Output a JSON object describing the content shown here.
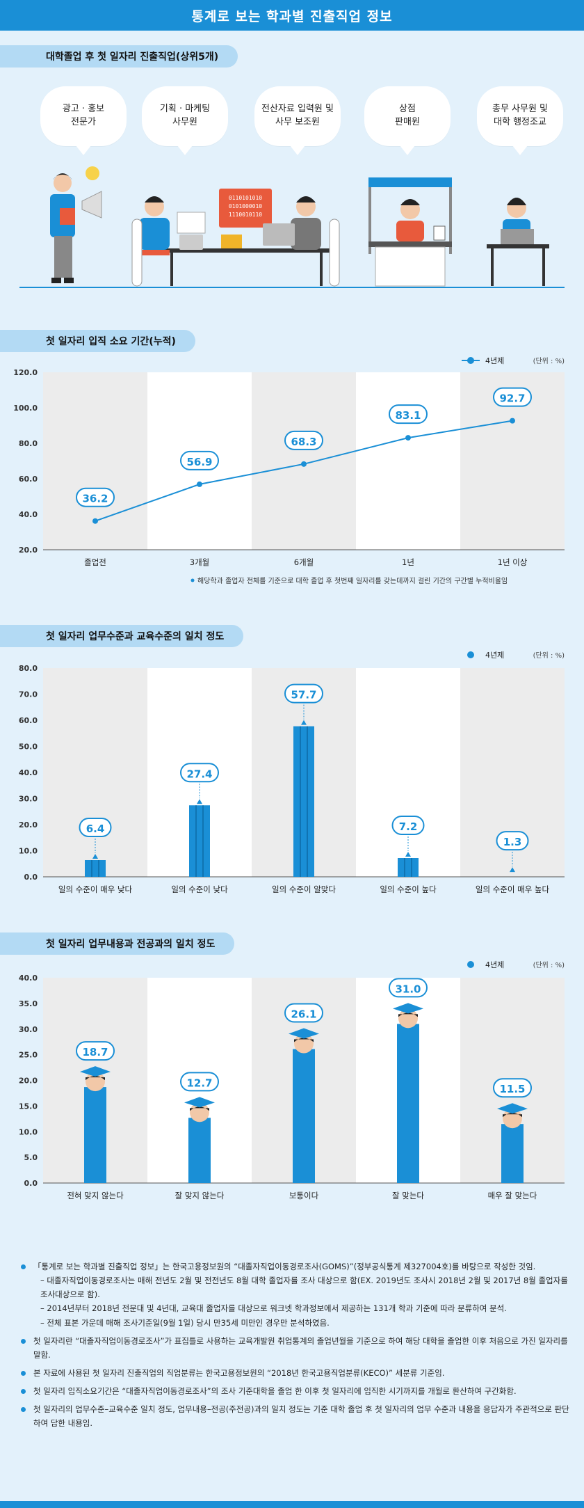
{
  "page_title": "통계로 보는 학과별 진출직업 정보",
  "section1": {
    "title": "대학졸업 후 첫 일자리 진출직업(상위5개)",
    "jobs": [
      "광고 · 홍보\n전문가",
      "기획 · 마케팅\n사무원",
      "전산자료 입력원 및\n사무 보조원",
      "상점\n판매원",
      "총무 사무원 및\n대학 행정조교"
    ],
    "illustration_text": "0110101010\n0101000010\n1110010110"
  },
  "colors": {
    "accent": "#1a8fd6",
    "pill": "#b3daf4",
    "background": "#e3f1fb",
    "grid_dark": "#ececec",
    "grid_light": "#ffffff"
  },
  "chart_data": [
    {
      "type": "line",
      "title": "첫 일자리 입직 소요 기간(누적)",
      "unit": "(단위 : %)",
      "categories": [
        "졸업전",
        "3개월",
        "6개월",
        "1년",
        "1년 이상"
      ],
      "series": [
        {
          "name": "4년제",
          "values": [
            36.2,
            56.9,
            68.3,
            83.1,
            92.7
          ]
        }
      ],
      "y_ticks": [
        "20.0",
        "40.0",
        "60.0",
        "80.0",
        "100.0",
        "120.0"
      ],
      "ylim": [
        20,
        120
      ],
      "footnote": "해당학과 졸업자 전체를 기준으로 대학 졸업 후 첫번째 일자리를 갖는데까지 걸린 기간의 구간별 누적비율임"
    },
    {
      "type": "bar",
      "title": "첫 일자리 업무수준과 교육수준의 일치 정도",
      "unit": "(단위 : %)",
      "categories": [
        "일의 수준이 매우 낮다",
        "일의 수준이 낮다",
        "일의 수준이 알맞다",
        "일의 수준이 높다",
        "일의 수준이 매우 높다"
      ],
      "series": [
        {
          "name": "4년제",
          "values": [
            6.4,
            27.4,
            57.7,
            7.2,
            1.3
          ]
        }
      ],
      "y_ticks": [
        "0.0",
        "10.0",
        "20.0",
        "30.0",
        "40.0",
        "50.0",
        "60.0",
        "70.0",
        "80.0"
      ],
      "ylim": [
        0,
        80
      ]
    },
    {
      "type": "bar",
      "title": "첫 일자리 업무내용과 전공과의 일치 정도",
      "unit": "(단위 : %)",
      "categories": [
        "전혀 맞지 않는다",
        "잘 맞지 않는다",
        "보통이다",
        "잘 맞는다",
        "매우 잘 맞는다"
      ],
      "series": [
        {
          "name": "4년제",
          "values": [
            18.7,
            12.7,
            26.1,
            31.0,
            11.5
          ]
        }
      ],
      "y_ticks": [
        "0.0",
        "5.0",
        "10.0",
        "15.0",
        "20.0",
        "25.0",
        "30.0",
        "35.0",
        "40.0"
      ],
      "ylim": [
        0,
        40
      ]
    }
  ],
  "notes": [
    {
      "text": "「통계로 보는 학과별 진출직업 정보」는 한국고용정보원의 “대졸자직업이동경로조사(GOMS)”(정부공식통계 제327004호)를 바탕으로 작성한 것임.",
      "subs": [
        "– 대졸자직업이동경로조사는 매해 전년도 2월 및 전전년도 8월 대학 졸업자를 조사 대상으로 함(EX. 2019년도 조사시 2018년 2월 및 2017년 8월 졸업자를 조사대상으로 함).",
        "– 2014년부터 2018년 전문대 및 4년대, 교육대 졸업자를 대상으로 워크넷 학과정보에서 제공하는 131개 학과 기준에 따라 분류하여 분석.",
        "– 전체 표본 가운데 매해 조사기준일(9월 1일) 당시 만35세 미만인 경우만 분석하였음."
      ]
    },
    {
      "text": "첫 일자리란 “대졸자직업이동경로조사”가 표집틀로 사용하는 교육개발원 취업통계의 졸업년월을 기준으로 하여 해당 대학을 졸업한 이후 처음으로 가진 일자리를 말함.",
      "subs": []
    },
    {
      "text": "본 자료에 사용된 첫 일자리 진출직업의 직업분류는 한국고용정보원의 “2018년 한국고용직업분류(KECO)” 세분류 기준임.",
      "subs": []
    },
    {
      "text": "첫 일자리 입직소요기간은 “대졸자직업이동경로조사”의 조사 기준대학을 졸업 한 이후 첫 일자리에 입직한 시기까지를 개월로 환산하여 구간화함.",
      "subs": []
    },
    {
      "text": "첫 일자리의 업무수준–교육수준 일치 정도, 업무내용–전공(주전공)과의 일치 정도는 기준 대학 졸업 후 첫 일자리의 업무 수준과 내용을 응답자가 주관적으로 판단하여 답한 내용임.",
      "subs": []
    }
  ]
}
